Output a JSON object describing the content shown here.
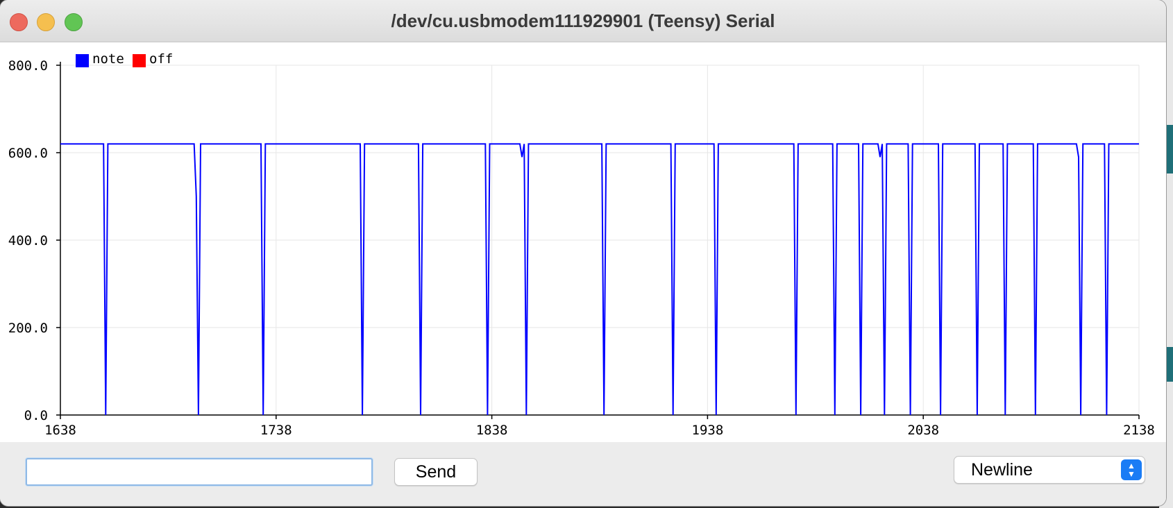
{
  "window": {
    "title": "/dev/cu.usbmodem111929901 (Teensy) Serial"
  },
  "legend": [
    {
      "label": "note",
      "color": "#0000ff"
    },
    {
      "label": "off",
      "color": "#ff0000"
    }
  ],
  "chart_data": {
    "type": "line",
    "xlim": [
      1638,
      2138
    ],
    "ylim": [
      0,
      800
    ],
    "xticks": [
      "1638",
      "1738",
      "1838",
      "1938",
      "2038",
      "2138"
    ],
    "yticks": [
      "800.0",
      "600.0",
      "400.0",
      "200.0",
      "0.0"
    ],
    "grid": true,
    "series": [
      {
        "name": "note",
        "color": "#0000ff",
        "points": [
          [
            1638,
            620
          ],
          [
            1658,
            620
          ],
          [
            1659,
            0
          ],
          [
            1660,
            620
          ],
          [
            1700,
            620
          ],
          [
            1701,
            500
          ],
          [
            1702,
            0
          ],
          [
            1703,
            620
          ],
          [
            1731,
            620
          ],
          [
            1732,
            0
          ],
          [
            1733,
            620
          ],
          [
            1777,
            620
          ],
          [
            1778,
            0
          ],
          [
            1779,
            620
          ],
          [
            1804,
            620
          ],
          [
            1805,
            0
          ],
          [
            1806,
            620
          ],
          [
            1835,
            620
          ],
          [
            1836,
            0
          ],
          [
            1837,
            620
          ],
          [
            1851,
            620
          ],
          [
            1852,
            590
          ],
          [
            1853,
            620
          ],
          [
            1854,
            0
          ],
          [
            1855,
            620
          ],
          [
            1889,
            620
          ],
          [
            1890,
            0
          ],
          [
            1891,
            620
          ],
          [
            1921,
            620
          ],
          [
            1922,
            0
          ],
          [
            1923,
            620
          ],
          [
            1941,
            620
          ],
          [
            1942,
            0
          ],
          [
            1943,
            620
          ],
          [
            1978,
            620
          ],
          [
            1979,
            0
          ],
          [
            1980,
            620
          ],
          [
            1996,
            620
          ],
          [
            1997,
            0
          ],
          [
            1998,
            620
          ],
          [
            2008,
            620
          ],
          [
            2009,
            0
          ],
          [
            2010,
            620
          ],
          [
            2017,
            620
          ],
          [
            2018,
            590
          ],
          [
            2019,
            620
          ],
          [
            2020,
            0
          ],
          [
            2021,
            620
          ],
          [
            2031,
            620
          ],
          [
            2032,
            0
          ],
          [
            2033,
            620
          ],
          [
            2045,
            620
          ],
          [
            2046,
            0
          ],
          [
            2047,
            620
          ],
          [
            2062,
            620
          ],
          [
            2063,
            0
          ],
          [
            2064,
            620
          ],
          [
            2075,
            620
          ],
          [
            2076,
            0
          ],
          [
            2077,
            620
          ],
          [
            2089,
            620
          ],
          [
            2090,
            0
          ],
          [
            2091,
            620
          ],
          [
            2109,
            620
          ],
          [
            2110,
            590
          ],
          [
            2111,
            0
          ],
          [
            2112,
            620
          ],
          [
            2122,
            620
          ],
          [
            2123,
            0
          ],
          [
            2124,
            620
          ],
          [
            2138,
            620
          ]
        ]
      },
      {
        "name": "off",
        "color": "#ff0000",
        "points": []
      }
    ]
  },
  "input": {
    "value": "",
    "placeholder": ""
  },
  "send_button": {
    "label": "Send"
  },
  "line_ending": {
    "selected": "Newline",
    "icon": "select-updown-icon"
  }
}
